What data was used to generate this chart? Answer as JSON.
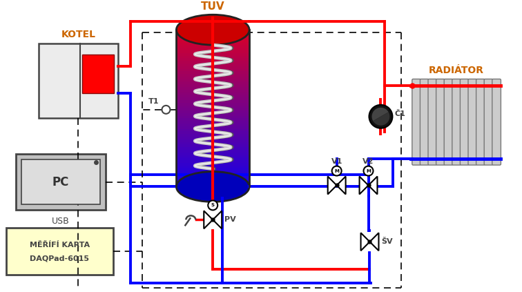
{
  "bg": "#ffffff",
  "red": "#ff0000",
  "blue": "#0000ff",
  "orange": "#cc6600",
  "black": "#000000",
  "dark_gray": "#444444",
  "mid_gray": "#888888",
  "light_gray": "#cccccc",
  "white": "#ffffff",
  "label_kotel": "KOTEL",
  "label_tuv": "TUV",
  "label_radiator": "RADIÁTOR",
  "label_pc": "PC",
  "label_usb": "USB",
  "label_merici1": "MĚŘÍFÍ KARTA",
  "label_merici2": "DAQPad-6015",
  "label_t1": "T1",
  "label_pv": "PV",
  "label_c1": "Č1",
  "label_v1": "V1",
  "label_v2": "V2",
  "label_sv": "ŠV"
}
